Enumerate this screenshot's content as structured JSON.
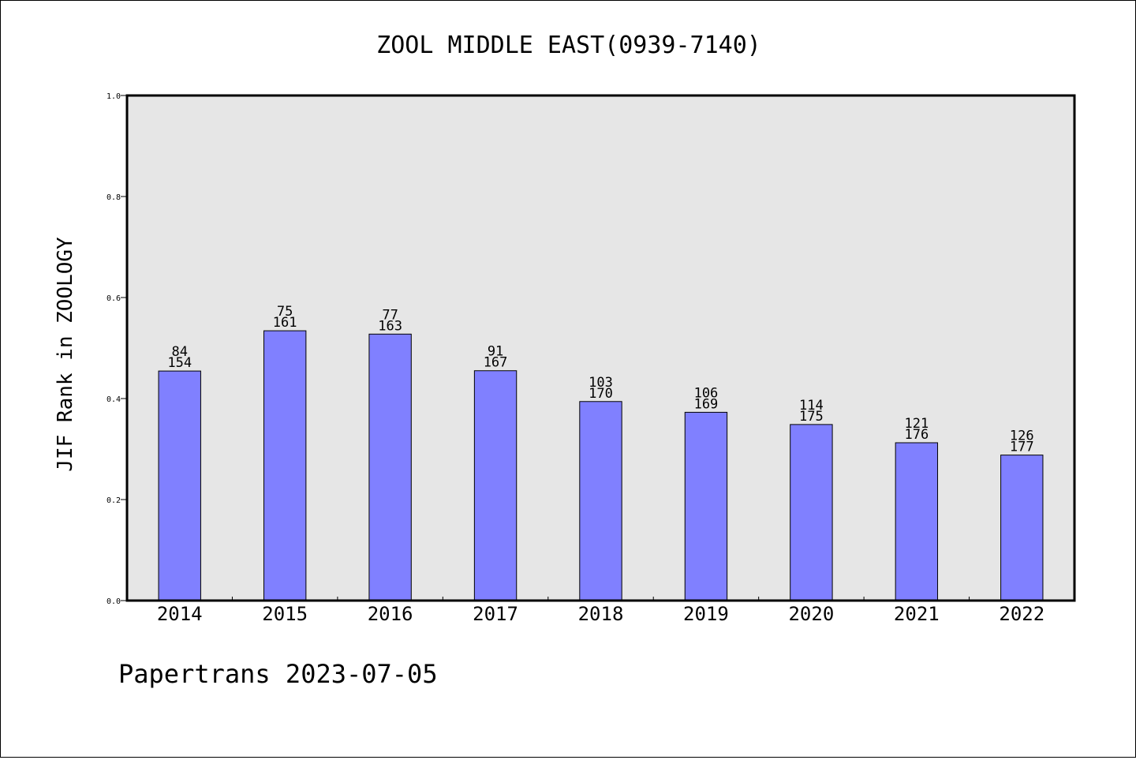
{
  "chart_data": {
    "type": "bar",
    "title": "ZOOL MIDDLE EAST(0939-7140)",
    "ylabel": "JIF Rank in ZOOLOGY",
    "xlabel": "",
    "ylim": [
      0,
      1.0
    ],
    "yticks": [
      "0.0",
      "0.2",
      "0.4",
      "0.6",
      "0.8",
      "1.0"
    ],
    "grid": false,
    "categories": [
      "2014",
      "2015",
      "2016",
      "2017",
      "2018",
      "2019",
      "2020",
      "2021",
      "2022"
    ],
    "series": [
      {
        "values": [
          0.4545,
          0.5342,
          0.5276,
          0.4551,
          0.3941,
          0.3728,
          0.3486,
          0.3125,
          0.2881
        ],
        "rank": [
          "84",
          "75",
          "77",
          "91",
          "103",
          "106",
          "114",
          "121",
          "126"
        ],
        "total": [
          "154",
          "161",
          "163",
          "167",
          "170",
          "169",
          "175",
          "176",
          "177"
        ]
      }
    ],
    "colors": {
      "bar": "#8080ff",
      "plot_background": "#e6e6e6",
      "axes": "#000000"
    }
  },
  "footer": {
    "text": "Papertrans 2023-07-05"
  }
}
